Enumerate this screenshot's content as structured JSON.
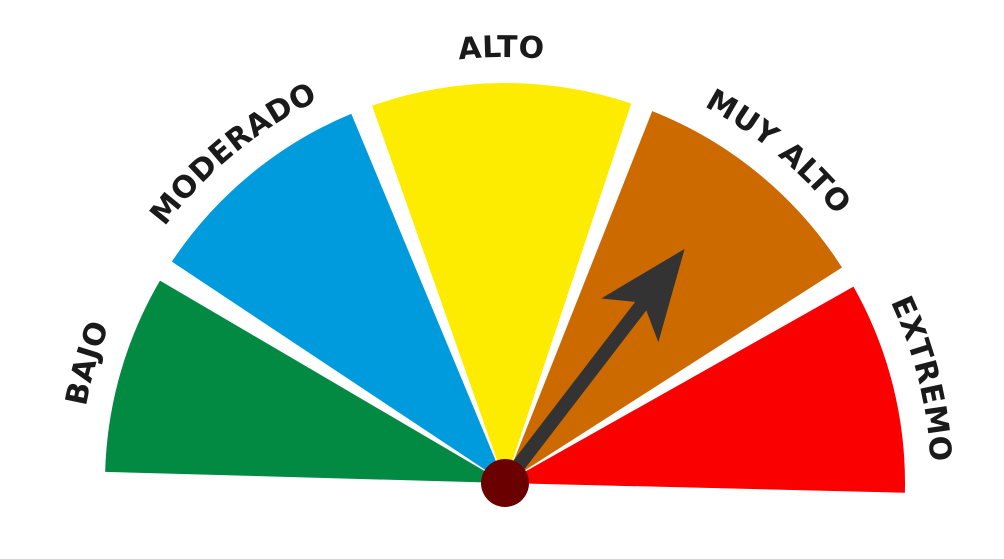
{
  "gauge": {
    "segments": [
      {
        "label": "BAJO",
        "color": "#028a43"
      },
      {
        "label": "MODERADO",
        "color": "#009bdc"
      },
      {
        "label": "ALTO",
        "color": "#fdeb00"
      },
      {
        "label": "MUY ALTO",
        "color": "#cc6a00"
      },
      {
        "label": "EXTREMO",
        "color": "#fb0000"
      }
    ],
    "indicator": {
      "active_segment": "MUY ALTO",
      "needle_color": "#333333",
      "hub_color": "#6a0000"
    }
  }
}
